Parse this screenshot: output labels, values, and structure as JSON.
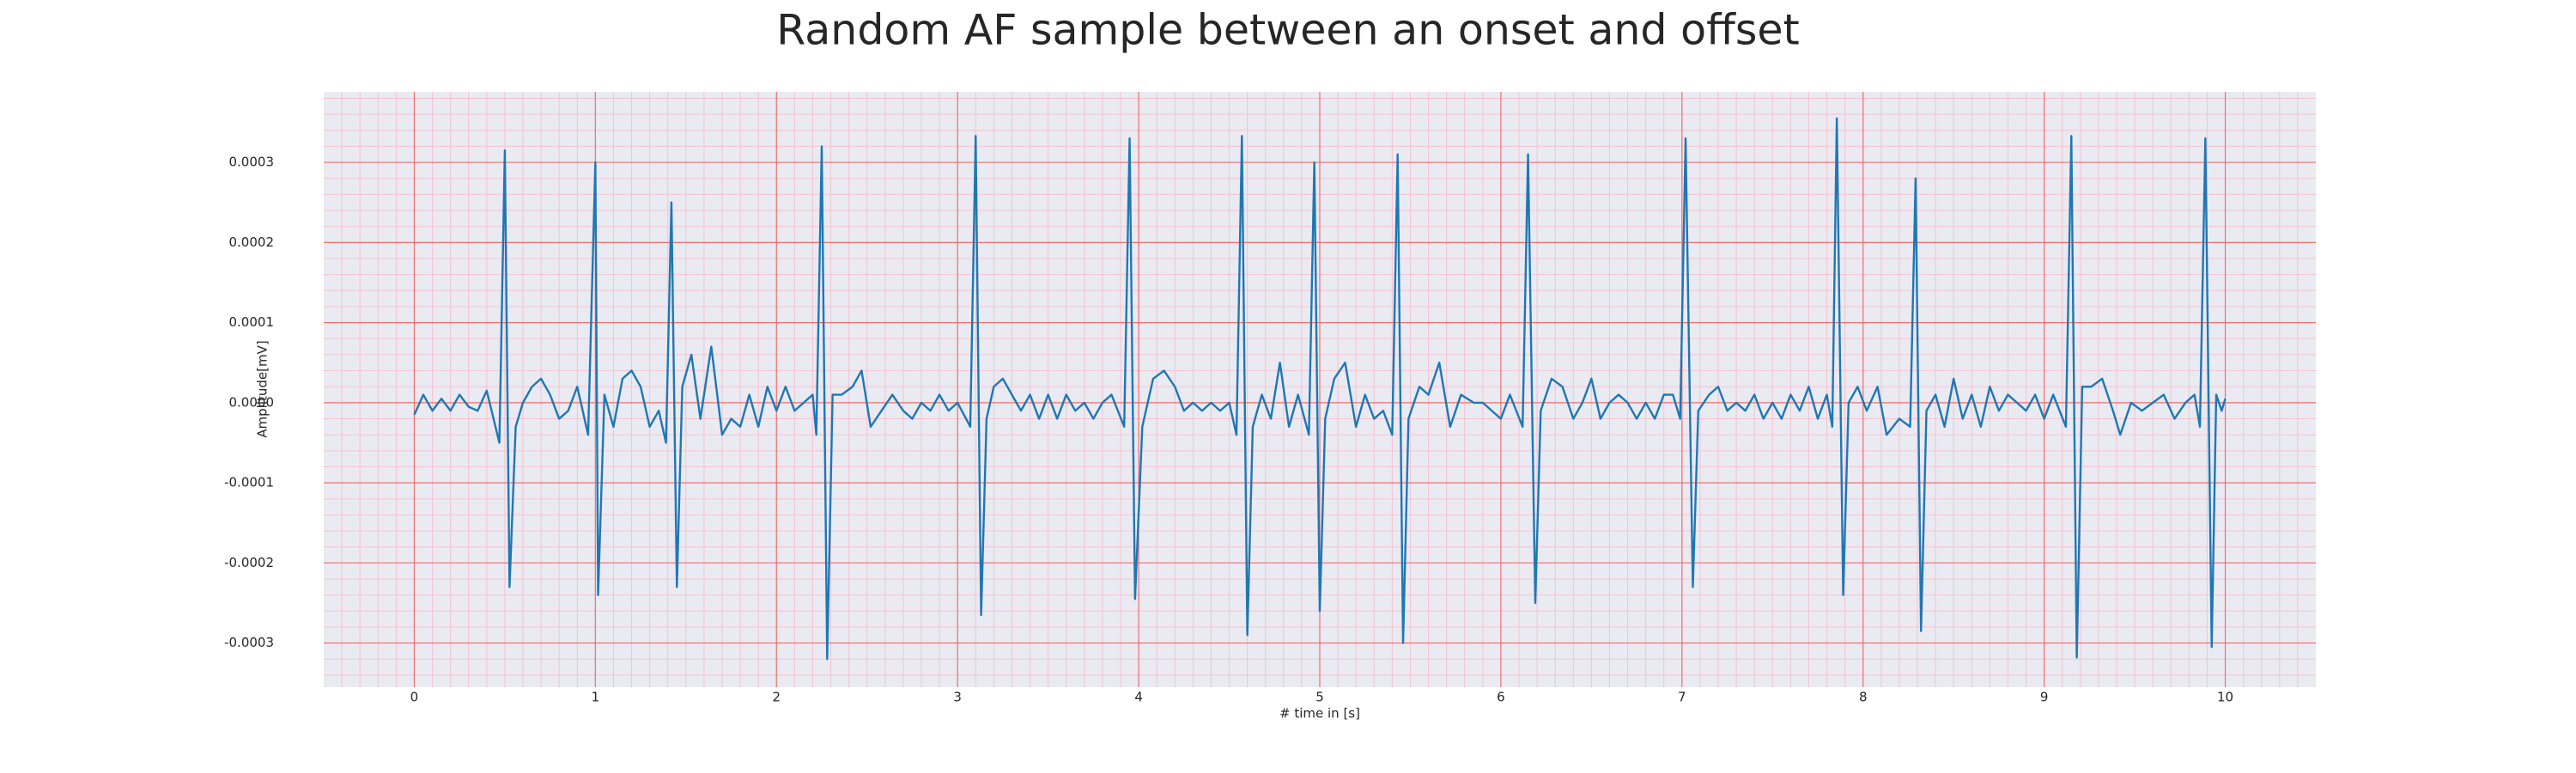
{
  "chart_data": {
    "type": "line",
    "title": "Random AF sample between an onset and offset",
    "x_label": "# time in [s]",
    "y_label": "Amplitude[mV]",
    "xlim": [
      -0.5,
      10.5
    ],
    "ylim": [
      -0.000355,
      0.000388
    ],
    "xticks": [
      0,
      1,
      2,
      3,
      4,
      5,
      6,
      7,
      8,
      9,
      10
    ],
    "yticks": [
      -0.0003,
      -0.0002,
      -0.0001,
      {
        "value": 0,
        "label": "0.0000"
      },
      0.0001,
      0.0002,
      0.0003
    ],
    "grid": true,
    "grid_color": "#f07070",
    "minor_grid_color": "#f2c4cf",
    "background": "#eaeaf2",
    "series": [
      {
        "color": "#1f77b4",
        "x": [
          0.0,
          0.05,
          0.1,
          0.15,
          0.2,
          0.25,
          0.3,
          0.35,
          0.4,
          0.47,
          0.5,
          0.526,
          0.56,
          0.6,
          0.65,
          0.7,
          0.75,
          0.8,
          0.85,
          0.9,
          0.96,
          1.0,
          1.015,
          1.05,
          1.1,
          1.15,
          1.2,
          1.25,
          1.3,
          1.35,
          1.39,
          1.42,
          1.45,
          1.48,
          1.53,
          1.58,
          1.64,
          1.7,
          1.75,
          1.8,
          1.85,
          1.9,
          1.95,
          2.0,
          2.05,
          2.1,
          2.15,
          2.2,
          2.22,
          2.25,
          2.28,
          2.31,
          2.36,
          2.42,
          2.47,
          2.52,
          2.58,
          2.64,
          2.7,
          2.75,
          2.8,
          2.85,
          2.9,
          2.95,
          3.0,
          3.07,
          3.1,
          3.13,
          3.16,
          3.2,
          3.25,
          3.3,
          3.35,
          3.4,
          3.45,
          3.5,
          3.55,
          3.6,
          3.65,
          3.7,
          3.75,
          3.8,
          3.85,
          3.92,
          3.95,
          3.98,
          4.02,
          4.08,
          4.14,
          4.2,
          4.25,
          4.3,
          4.35,
          4.4,
          4.45,
          4.5,
          4.54,
          4.57,
          4.6,
          4.63,
          4.68,
          4.73,
          4.78,
          4.83,
          4.88,
          4.94,
          4.97,
          5.0,
          5.03,
          5.08,
          5.14,
          5.2,
          5.25,
          5.3,
          5.35,
          5.4,
          5.43,
          5.46,
          5.49,
          5.55,
          5.6,
          5.66,
          5.72,
          5.78,
          5.85,
          5.9,
          5.95,
          6.0,
          6.05,
          6.12,
          6.15,
          6.19,
          6.22,
          6.28,
          6.34,
          6.4,
          6.45,
          6.5,
          6.55,
          6.6,
          6.65,
          6.7,
          6.75,
          6.8,
          6.85,
          6.9,
          6.95,
          6.99,
          7.02,
          7.06,
          7.09,
          7.15,
          7.2,
          7.25,
          7.3,
          7.35,
          7.4,
          7.45,
          7.5,
          7.55,
          7.6,
          7.65,
          7.7,
          7.75,
          7.8,
          7.83,
          7.855,
          7.89,
          7.92,
          7.97,
          8.02,
          8.08,
          8.13,
          8.2,
          8.26,
          8.29,
          8.32,
          8.35,
          8.4,
          8.45,
          8.5,
          8.55,
          8.6,
          8.65,
          8.7,
          8.75,
          8.8,
          8.85,
          8.9,
          8.95,
          9.0,
          9.05,
          9.12,
          9.15,
          9.18,
          9.21,
          9.26,
          9.32,
          9.38,
          9.42,
          9.48,
          9.54,
          9.6,
          9.66,
          9.72,
          9.78,
          9.83,
          9.86,
          9.89,
          9.925,
          9.95,
          9.98,
          10.0
        ],
        "values": [
          -1.5e-05,
          1e-05,
          -1e-05,
          5e-06,
          -1e-05,
          1e-05,
          -5e-06,
          -1e-05,
          1.5e-05,
          -5e-05,
          0.000315,
          -0.00023,
          -3e-05,
          0.0,
          2e-05,
          3e-05,
          1e-05,
          -2e-05,
          -1e-05,
          2e-05,
          -4e-05,
          0.0003,
          -0.00024,
          1e-05,
          -3e-05,
          3e-05,
          4e-05,
          2e-05,
          -3e-05,
          -1e-05,
          -5e-05,
          0.00025,
          -0.00023,
          2e-05,
          6e-05,
          -2e-05,
          7e-05,
          -4e-05,
          -2e-05,
          -3e-05,
          1e-05,
          -3e-05,
          2e-05,
          -1e-05,
          2e-05,
          -1e-05,
          0.0,
          1e-05,
          -4e-05,
          0.00032,
          -0.00032,
          1e-05,
          1e-05,
          2e-05,
          4e-05,
          -3e-05,
          -1e-05,
          1e-05,
          -1e-05,
          -2e-05,
          0.0,
          -1e-05,
          1e-05,
          -1e-05,
          0.0,
          -3e-05,
          0.000333,
          -0.000265,
          -2e-05,
          2e-05,
          3e-05,
          1e-05,
          -1e-05,
          1e-05,
          -2e-05,
          1e-05,
          -2e-05,
          1e-05,
          -1e-05,
          0.0,
          -2e-05,
          0.0,
          1e-05,
          -3e-05,
          0.00033,
          -0.000245,
          -3e-05,
          3e-05,
          4e-05,
          2e-05,
          -1e-05,
          0.0,
          -1e-05,
          0.0,
          -1e-05,
          0.0,
          -4e-05,
          0.000333,
          -0.00029,
          -3e-05,
          1e-05,
          -2e-05,
          5e-05,
          -3e-05,
          1e-05,
          -4e-05,
          0.0003,
          -0.00026,
          -2e-05,
          3e-05,
          5e-05,
          -3e-05,
          1e-05,
          -2e-05,
          -1e-05,
          -4e-05,
          0.00031,
          -0.0003,
          -2e-05,
          2e-05,
          1e-05,
          5e-05,
          -3e-05,
          1e-05,
          0.0,
          0.0,
          -1e-05,
          -2e-05,
          1e-05,
          -3e-05,
          0.00031,
          -0.00025,
          -1e-05,
          3e-05,
          2e-05,
          -2e-05,
          0.0,
          3e-05,
          -2e-05,
          0.0,
          1e-05,
          0.0,
          -2e-05,
          0.0,
          -2e-05,
          1e-05,
          1e-05,
          -2e-05,
          0.00033,
          -0.00023,
          -1e-05,
          1e-05,
          2e-05,
          -1e-05,
          0.0,
          -1e-05,
          1e-05,
          -2e-05,
          0.0,
          -2e-05,
          1e-05,
          -1e-05,
          2e-05,
          -2e-05,
          1e-05,
          -3e-05,
          0.000355,
          -0.00024,
          0.0,
          2e-05,
          -1e-05,
          2e-05,
          -4e-05,
          -2e-05,
          -3e-05,
          0.00028,
          -0.000285,
          -1e-05,
          1e-05,
          -3e-05,
          3e-05,
          -2e-05,
          1e-05,
          -3e-05,
          2e-05,
          -1e-05,
          1e-05,
          0.0,
          -1e-05,
          1e-05,
          -2e-05,
          1e-05,
          -3e-05,
          0.000333,
          -0.000318,
          2e-05,
          2e-05,
          3e-05,
          -1e-05,
          -4e-05,
          0.0,
          -1e-05,
          0.0,
          1e-05,
          -2e-05,
          0.0,
          1e-05,
          -3e-05,
          0.00033,
          -0.000305,
          1e-05,
          -1e-05,
          5e-06
        ]
      }
    ]
  }
}
